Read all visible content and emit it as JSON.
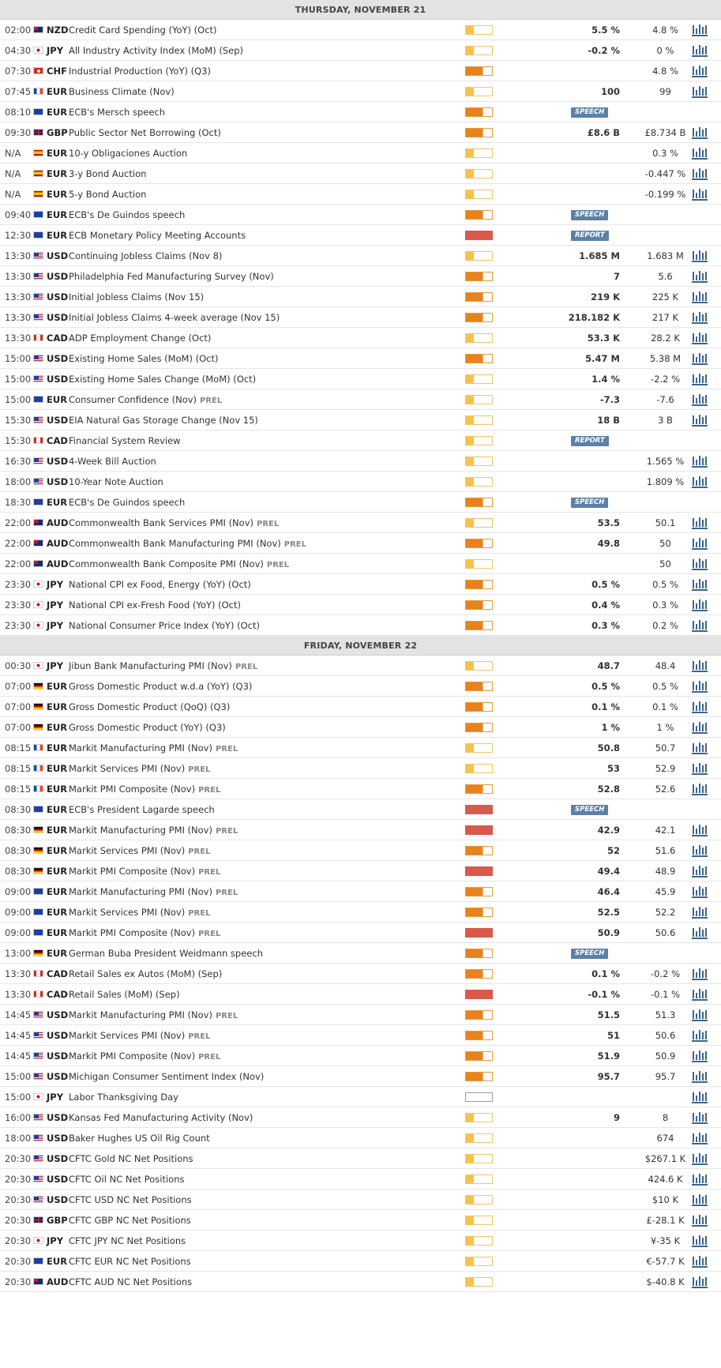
{
  "days": [
    {
      "label": "THURSDAY, NOVEMBER 21",
      "events": [
        {
          "time": "02:00",
          "country": "nz",
          "currency": "NZD",
          "name": "Credit Card Spending (YoY) (Oct)",
          "prel": "",
          "impact": "low",
          "actual": "5.5 %",
          "previous": "4.8 %",
          "badge": "",
          "chart": true
        },
        {
          "time": "04:30",
          "country": "jp",
          "currency": "JPY",
          "name": "All Industry Activity Index (MoM) (Sep)",
          "prel": "",
          "impact": "low",
          "actual": "-0.2 %",
          "previous": "0 %",
          "badge": "",
          "chart": true
        },
        {
          "time": "07:30",
          "country": "ch",
          "currency": "CHF",
          "name": "Industrial Production (YoY) (Q3)",
          "prel": "",
          "impact": "med",
          "actual": "",
          "previous": "4.8 %",
          "badge": "",
          "chart": true
        },
        {
          "time": "07:45",
          "country": "fr",
          "currency": "EUR",
          "name": "Business Climate (Nov)",
          "prel": "",
          "impact": "low",
          "actual": "100",
          "previous": "99",
          "badge": "",
          "chart": true
        },
        {
          "time": "08:10",
          "country": "eu",
          "currency": "EUR",
          "name": "ECB's Mersch speech",
          "prel": "",
          "impact": "med",
          "actual": "",
          "previous": "",
          "badge": "SPEECH",
          "chart": false
        },
        {
          "time": "09:30",
          "country": "gb",
          "currency": "GBP",
          "name": "Public Sector Net Borrowing (Oct)",
          "prel": "",
          "impact": "med",
          "actual": "£8.6 B",
          "previous": "£8.734 B",
          "badge": "",
          "chart": true
        },
        {
          "time": "N/A",
          "country": "es",
          "currency": "EUR",
          "name": "10-y Obligaciones Auction",
          "prel": "",
          "impact": "low",
          "actual": "",
          "previous": "0.3 %",
          "badge": "",
          "chart": true
        },
        {
          "time": "N/A",
          "country": "es",
          "currency": "EUR",
          "name": "3-y Bond Auction",
          "prel": "",
          "impact": "low",
          "actual": "",
          "previous": "-0.447 %",
          "badge": "",
          "chart": true
        },
        {
          "time": "N/A",
          "country": "es",
          "currency": "EUR",
          "name": "5-y Bond Auction",
          "prel": "",
          "impact": "low",
          "actual": "",
          "previous": "-0.199 %",
          "badge": "",
          "chart": true
        },
        {
          "time": "09:40",
          "country": "eu",
          "currency": "EUR",
          "name": "ECB's De Guindos speech",
          "prel": "",
          "impact": "med",
          "actual": "",
          "previous": "",
          "badge": "SPEECH",
          "chart": false
        },
        {
          "time": "12:30",
          "country": "eu",
          "currency": "EUR",
          "name": "ECB Monetary Policy Meeting Accounts",
          "prel": "",
          "impact": "high",
          "actual": "",
          "previous": "",
          "badge": "REPORT",
          "chart": false
        },
        {
          "time": "13:30",
          "country": "us",
          "currency": "USD",
          "name": "Continuing Jobless Claims (Nov 8)",
          "prel": "",
          "impact": "low",
          "actual": "1.685 M",
          "previous": "1.683 M",
          "badge": "",
          "chart": true
        },
        {
          "time": "13:30",
          "country": "us",
          "currency": "USD",
          "name": "Philadelphia Fed Manufacturing Survey (Nov)",
          "prel": "",
          "impact": "med",
          "actual": "7",
          "previous": "5.6",
          "badge": "",
          "chart": true
        },
        {
          "time": "13:30",
          "country": "us",
          "currency": "USD",
          "name": "Initial Jobless Claims (Nov 15)",
          "prel": "",
          "impact": "med",
          "actual": "219 K",
          "previous": "225 K",
          "badge": "",
          "chart": true
        },
        {
          "time": "13:30",
          "country": "us",
          "currency": "USD",
          "name": "Initial Jobless Claims 4-week average (Nov 15)",
          "prel": "",
          "impact": "med",
          "actual": "218.182 K",
          "previous": "217 K",
          "badge": "",
          "chart": true
        },
        {
          "time": "13:30",
          "country": "ca",
          "currency": "CAD",
          "name": "ADP Employment Change (Oct)",
          "prel": "",
          "impact": "low",
          "actual": "53.3 K",
          "previous": "28.2 K",
          "badge": "",
          "chart": true
        },
        {
          "time": "15:00",
          "country": "us",
          "currency": "USD",
          "name": "Existing Home Sales (MoM) (Oct)",
          "prel": "",
          "impact": "med",
          "actual": "5.47 M",
          "previous": "5.38 M",
          "badge": "",
          "chart": true
        },
        {
          "time": "15:00",
          "country": "us",
          "currency": "USD",
          "name": "Existing Home Sales Change (MoM) (Oct)",
          "prel": "",
          "impact": "low",
          "actual": "1.4 %",
          "previous": "-2.2 %",
          "badge": "",
          "chart": true
        },
        {
          "time": "15:00",
          "country": "eu",
          "currency": "EUR",
          "name": "Consumer Confidence (Nov)",
          "prel": "PREL",
          "impact": "low",
          "actual": "-7.3",
          "previous": "-7.6",
          "badge": "",
          "chart": true
        },
        {
          "time": "15:30",
          "country": "us",
          "currency": "USD",
          "name": "EIA Natural Gas Storage Change (Nov 15)",
          "prel": "",
          "impact": "low",
          "actual": "18 B",
          "previous": "3 B",
          "badge": "",
          "chart": true
        },
        {
          "time": "15:30",
          "country": "ca",
          "currency": "CAD",
          "name": "Financial System Review",
          "prel": "",
          "impact": "low",
          "actual": "",
          "previous": "",
          "badge": "REPORT",
          "chart": false
        },
        {
          "time": "16:30",
          "country": "us",
          "currency": "USD",
          "name": "4-Week Bill Auction",
          "prel": "",
          "impact": "low",
          "actual": "",
          "previous": "1.565 %",
          "badge": "",
          "chart": true
        },
        {
          "time": "18:00",
          "country": "us",
          "currency": "USD",
          "name": "10-Year Note Auction",
          "prel": "",
          "impact": "low",
          "actual": "",
          "previous": "1.809 %",
          "badge": "",
          "chart": true
        },
        {
          "time": "18:30",
          "country": "eu",
          "currency": "EUR",
          "name": "ECB's De Guindos speech",
          "prel": "",
          "impact": "med",
          "actual": "",
          "previous": "",
          "badge": "SPEECH",
          "chart": false
        },
        {
          "time": "22:00",
          "country": "au",
          "currency": "AUD",
          "name": "Commonwealth Bank Services PMI (Nov)",
          "prel": "PREL",
          "impact": "low",
          "actual": "53.5",
          "previous": "50.1",
          "badge": "",
          "chart": true
        },
        {
          "time": "22:00",
          "country": "au",
          "currency": "AUD",
          "name": "Commonwealth Bank Manufacturing PMI (Nov)",
          "prel": "PREL",
          "impact": "med",
          "actual": "49.8",
          "previous": "50",
          "badge": "",
          "chart": true
        },
        {
          "time": "22:00",
          "country": "au",
          "currency": "AUD",
          "name": "Commonwealth Bank Composite PMI (Nov)",
          "prel": "PREL",
          "impact": "low",
          "actual": "",
          "previous": "50",
          "badge": "",
          "chart": true
        },
        {
          "time": "23:30",
          "country": "jp",
          "currency": "JPY",
          "name": "National CPI ex Food, Energy (YoY) (Oct)",
          "prel": "",
          "impact": "med",
          "actual": "0.5 %",
          "previous": "0.5 %",
          "badge": "",
          "chart": true
        },
        {
          "time": "23:30",
          "country": "jp",
          "currency": "JPY",
          "name": "National CPI ex-Fresh Food (YoY) (Oct)",
          "prel": "",
          "impact": "med",
          "actual": "0.4 %",
          "previous": "0.3 %",
          "badge": "",
          "chart": true
        },
        {
          "time": "23:30",
          "country": "jp",
          "currency": "JPY",
          "name": "National Consumer Price Index (YoY) (Oct)",
          "prel": "",
          "impact": "med",
          "actual": "0.3 %",
          "previous": "0.2 %",
          "badge": "",
          "chart": true
        }
      ]
    },
    {
      "label": "FRIDAY, NOVEMBER 22",
      "events": [
        {
          "time": "00:30",
          "country": "jp",
          "currency": "JPY",
          "name": "Jibun Bank Manufacturing PMI (Nov)",
          "prel": "PREL",
          "impact": "low",
          "actual": "48.7",
          "previous": "48.4",
          "badge": "",
          "chart": true
        },
        {
          "time": "07:00",
          "country": "de",
          "currency": "EUR",
          "name": "Gross Domestic Product w.d.a (YoY) (Q3)",
          "prel": "",
          "impact": "med",
          "actual": "0.5 %",
          "previous": "0.5 %",
          "badge": "",
          "chart": true
        },
        {
          "time": "07:00",
          "country": "de",
          "currency": "EUR",
          "name": "Gross Domestic Product (QoQ) (Q3)",
          "prel": "",
          "impact": "med",
          "actual": "0.1 %",
          "previous": "0.1 %",
          "badge": "",
          "chart": true
        },
        {
          "time": "07:00",
          "country": "de",
          "currency": "EUR",
          "name": "Gross Domestic Product (YoY) (Q3)",
          "prel": "",
          "impact": "med",
          "actual": "1 %",
          "previous": "1 %",
          "badge": "",
          "chart": true
        },
        {
          "time": "08:15",
          "country": "fr",
          "currency": "EUR",
          "name": "Markit Manufacturing PMI (Nov)",
          "prel": "PREL",
          "impact": "low",
          "actual": "50.8",
          "previous": "50.7",
          "badge": "",
          "chart": true
        },
        {
          "time": "08:15",
          "country": "fr",
          "currency": "EUR",
          "name": "Markit Services PMI (Nov)",
          "prel": "PREL",
          "impact": "low",
          "actual": "53",
          "previous": "52.9",
          "badge": "",
          "chart": true
        },
        {
          "time": "08:15",
          "country": "fr",
          "currency": "EUR",
          "name": "Markit PMI Composite (Nov)",
          "prel": "PREL",
          "impact": "med",
          "actual": "52.8",
          "previous": "52.6",
          "badge": "",
          "chart": true
        },
        {
          "time": "08:30",
          "country": "eu",
          "currency": "EUR",
          "name": "ECB's President Lagarde speech",
          "prel": "",
          "impact": "high",
          "actual": "",
          "previous": "",
          "badge": "SPEECH",
          "chart": false
        },
        {
          "time": "08:30",
          "country": "de",
          "currency": "EUR",
          "name": "Markit Manufacturing PMI (Nov)",
          "prel": "PREL",
          "impact": "high",
          "actual": "42.9",
          "previous": "42.1",
          "badge": "",
          "chart": true
        },
        {
          "time": "08:30",
          "country": "de",
          "currency": "EUR",
          "name": "Markit Services PMI (Nov)",
          "prel": "PREL",
          "impact": "med",
          "actual": "52",
          "previous": "51.6",
          "badge": "",
          "chart": true
        },
        {
          "time": "08:30",
          "country": "de",
          "currency": "EUR",
          "name": "Markit PMI Composite (Nov)",
          "prel": "PREL",
          "impact": "high",
          "actual": "49.4",
          "previous": "48.9",
          "badge": "",
          "chart": true
        },
        {
          "time": "09:00",
          "country": "eu",
          "currency": "EUR",
          "name": "Markit Manufacturing PMI (Nov)",
          "prel": "PREL",
          "impact": "med",
          "actual": "46.4",
          "previous": "45.9",
          "badge": "",
          "chart": true
        },
        {
          "time": "09:00",
          "country": "eu",
          "currency": "EUR",
          "name": "Markit Services PMI (Nov)",
          "prel": "PREL",
          "impact": "med",
          "actual": "52.5",
          "previous": "52.2",
          "badge": "",
          "chart": true
        },
        {
          "time": "09:00",
          "country": "eu",
          "currency": "EUR",
          "name": "Markit PMI Composite (Nov)",
          "prel": "PREL",
          "impact": "high",
          "actual": "50.9",
          "previous": "50.6",
          "badge": "",
          "chart": true
        },
        {
          "time": "13:00",
          "country": "de",
          "currency": "EUR",
          "name": "German Buba President Weidmann speech",
          "prel": "",
          "impact": "med",
          "actual": "",
          "previous": "",
          "badge": "SPEECH",
          "chart": false
        },
        {
          "time": "13:30",
          "country": "ca",
          "currency": "CAD",
          "name": "Retail Sales ex Autos (MoM) (Sep)",
          "prel": "",
          "impact": "med",
          "actual": "0.1 %",
          "previous": "-0.2 %",
          "badge": "",
          "chart": true
        },
        {
          "time": "13:30",
          "country": "ca",
          "currency": "CAD",
          "name": "Retail Sales (MoM) (Sep)",
          "prel": "",
          "impact": "high",
          "actual": "-0.1 %",
          "previous": "-0.1 %",
          "badge": "",
          "chart": true
        },
        {
          "time": "14:45",
          "country": "us",
          "currency": "USD",
          "name": "Markit Manufacturing PMI (Nov)",
          "prel": "PREL",
          "impact": "med",
          "actual": "51.5",
          "previous": "51.3",
          "badge": "",
          "chart": true
        },
        {
          "time": "14:45",
          "country": "us",
          "currency": "USD",
          "name": "Markit Services PMI (Nov)",
          "prel": "PREL",
          "impact": "med",
          "actual": "51",
          "previous": "50.6",
          "badge": "",
          "chart": true
        },
        {
          "time": "14:45",
          "country": "us",
          "currency": "USD",
          "name": "Markit PMI Composite (Nov)",
          "prel": "PREL",
          "impact": "med",
          "actual": "51.9",
          "previous": "50.9",
          "badge": "",
          "chart": true
        },
        {
          "time": "15:00",
          "country": "us",
          "currency": "USD",
          "name": "Michigan Consumer Sentiment Index (Nov)",
          "prel": "",
          "impact": "med",
          "actual": "95.7",
          "previous": "95.7",
          "badge": "",
          "chart": true
        },
        {
          "time": "15:00",
          "country": "jp",
          "currency": "JPY",
          "name": "Labor Thanksgiving Day",
          "prel": "",
          "impact": "none",
          "actual": "",
          "previous": "",
          "badge": "",
          "chart": true
        },
        {
          "time": "16:00",
          "country": "us",
          "currency": "USD",
          "name": "Kansas Fed Manufacturing Activity (Nov)",
          "prel": "",
          "impact": "low",
          "actual": "9",
          "previous": "8",
          "badge": "",
          "chart": true
        },
        {
          "time": "18:00",
          "country": "us",
          "currency": "USD",
          "name": "Baker Hughes US Oil Rig Count",
          "prel": "",
          "impact": "low",
          "actual": "",
          "previous": "674",
          "badge": "",
          "chart": true
        },
        {
          "time": "20:30",
          "country": "us",
          "currency": "USD",
          "name": "CFTC Gold NC Net Positions",
          "prel": "",
          "impact": "low",
          "actual": "",
          "previous": "$267.1 K",
          "badge": "",
          "chart": true
        },
        {
          "time": "20:30",
          "country": "us",
          "currency": "USD",
          "name": "CFTC Oil NC Net Positions",
          "prel": "",
          "impact": "low",
          "actual": "",
          "previous": "424.6 K",
          "badge": "",
          "chart": true
        },
        {
          "time": "20:30",
          "country": "us",
          "currency": "USD",
          "name": "CFTC USD NC Net Positions",
          "prel": "",
          "impact": "low",
          "actual": "",
          "previous": "$10 K",
          "badge": "",
          "chart": true
        },
        {
          "time": "20:30",
          "country": "gb",
          "currency": "GBP",
          "name": "CFTC GBP NC Net Positions",
          "prel": "",
          "impact": "low",
          "actual": "",
          "previous": "£-28.1 K",
          "badge": "",
          "chart": true
        },
        {
          "time": "20:30",
          "country": "jp",
          "currency": "JPY",
          "name": "CFTC JPY NC Net Positions",
          "prel": "",
          "impact": "low",
          "actual": "",
          "previous": "¥-35 K",
          "badge": "",
          "chart": true
        },
        {
          "time": "20:30",
          "country": "eu",
          "currency": "EUR",
          "name": "CFTC EUR NC Net Positions",
          "prel": "",
          "impact": "low",
          "actual": "",
          "previous": "€-57.7 K",
          "badge": "",
          "chart": true
        },
        {
          "time": "20:30",
          "country": "au",
          "currency": "AUD",
          "name": "CFTC AUD NC Net Positions",
          "prel": "",
          "impact": "low",
          "actual": "",
          "previous": "$-40.8 K",
          "badge": "",
          "chart": true
        }
      ]
    }
  ],
  "colors": {
    "impact_low": "#f7c24a",
    "impact_medium": "#e8821c",
    "impact_high": "#d9594c",
    "badge": "#5a81a8",
    "chart_icon": "#3c6590",
    "header_bg": "#e3e3e3"
  },
  "icons": {
    "chart": "bar-chart-icon",
    "flag": "country-flag-icon"
  }
}
